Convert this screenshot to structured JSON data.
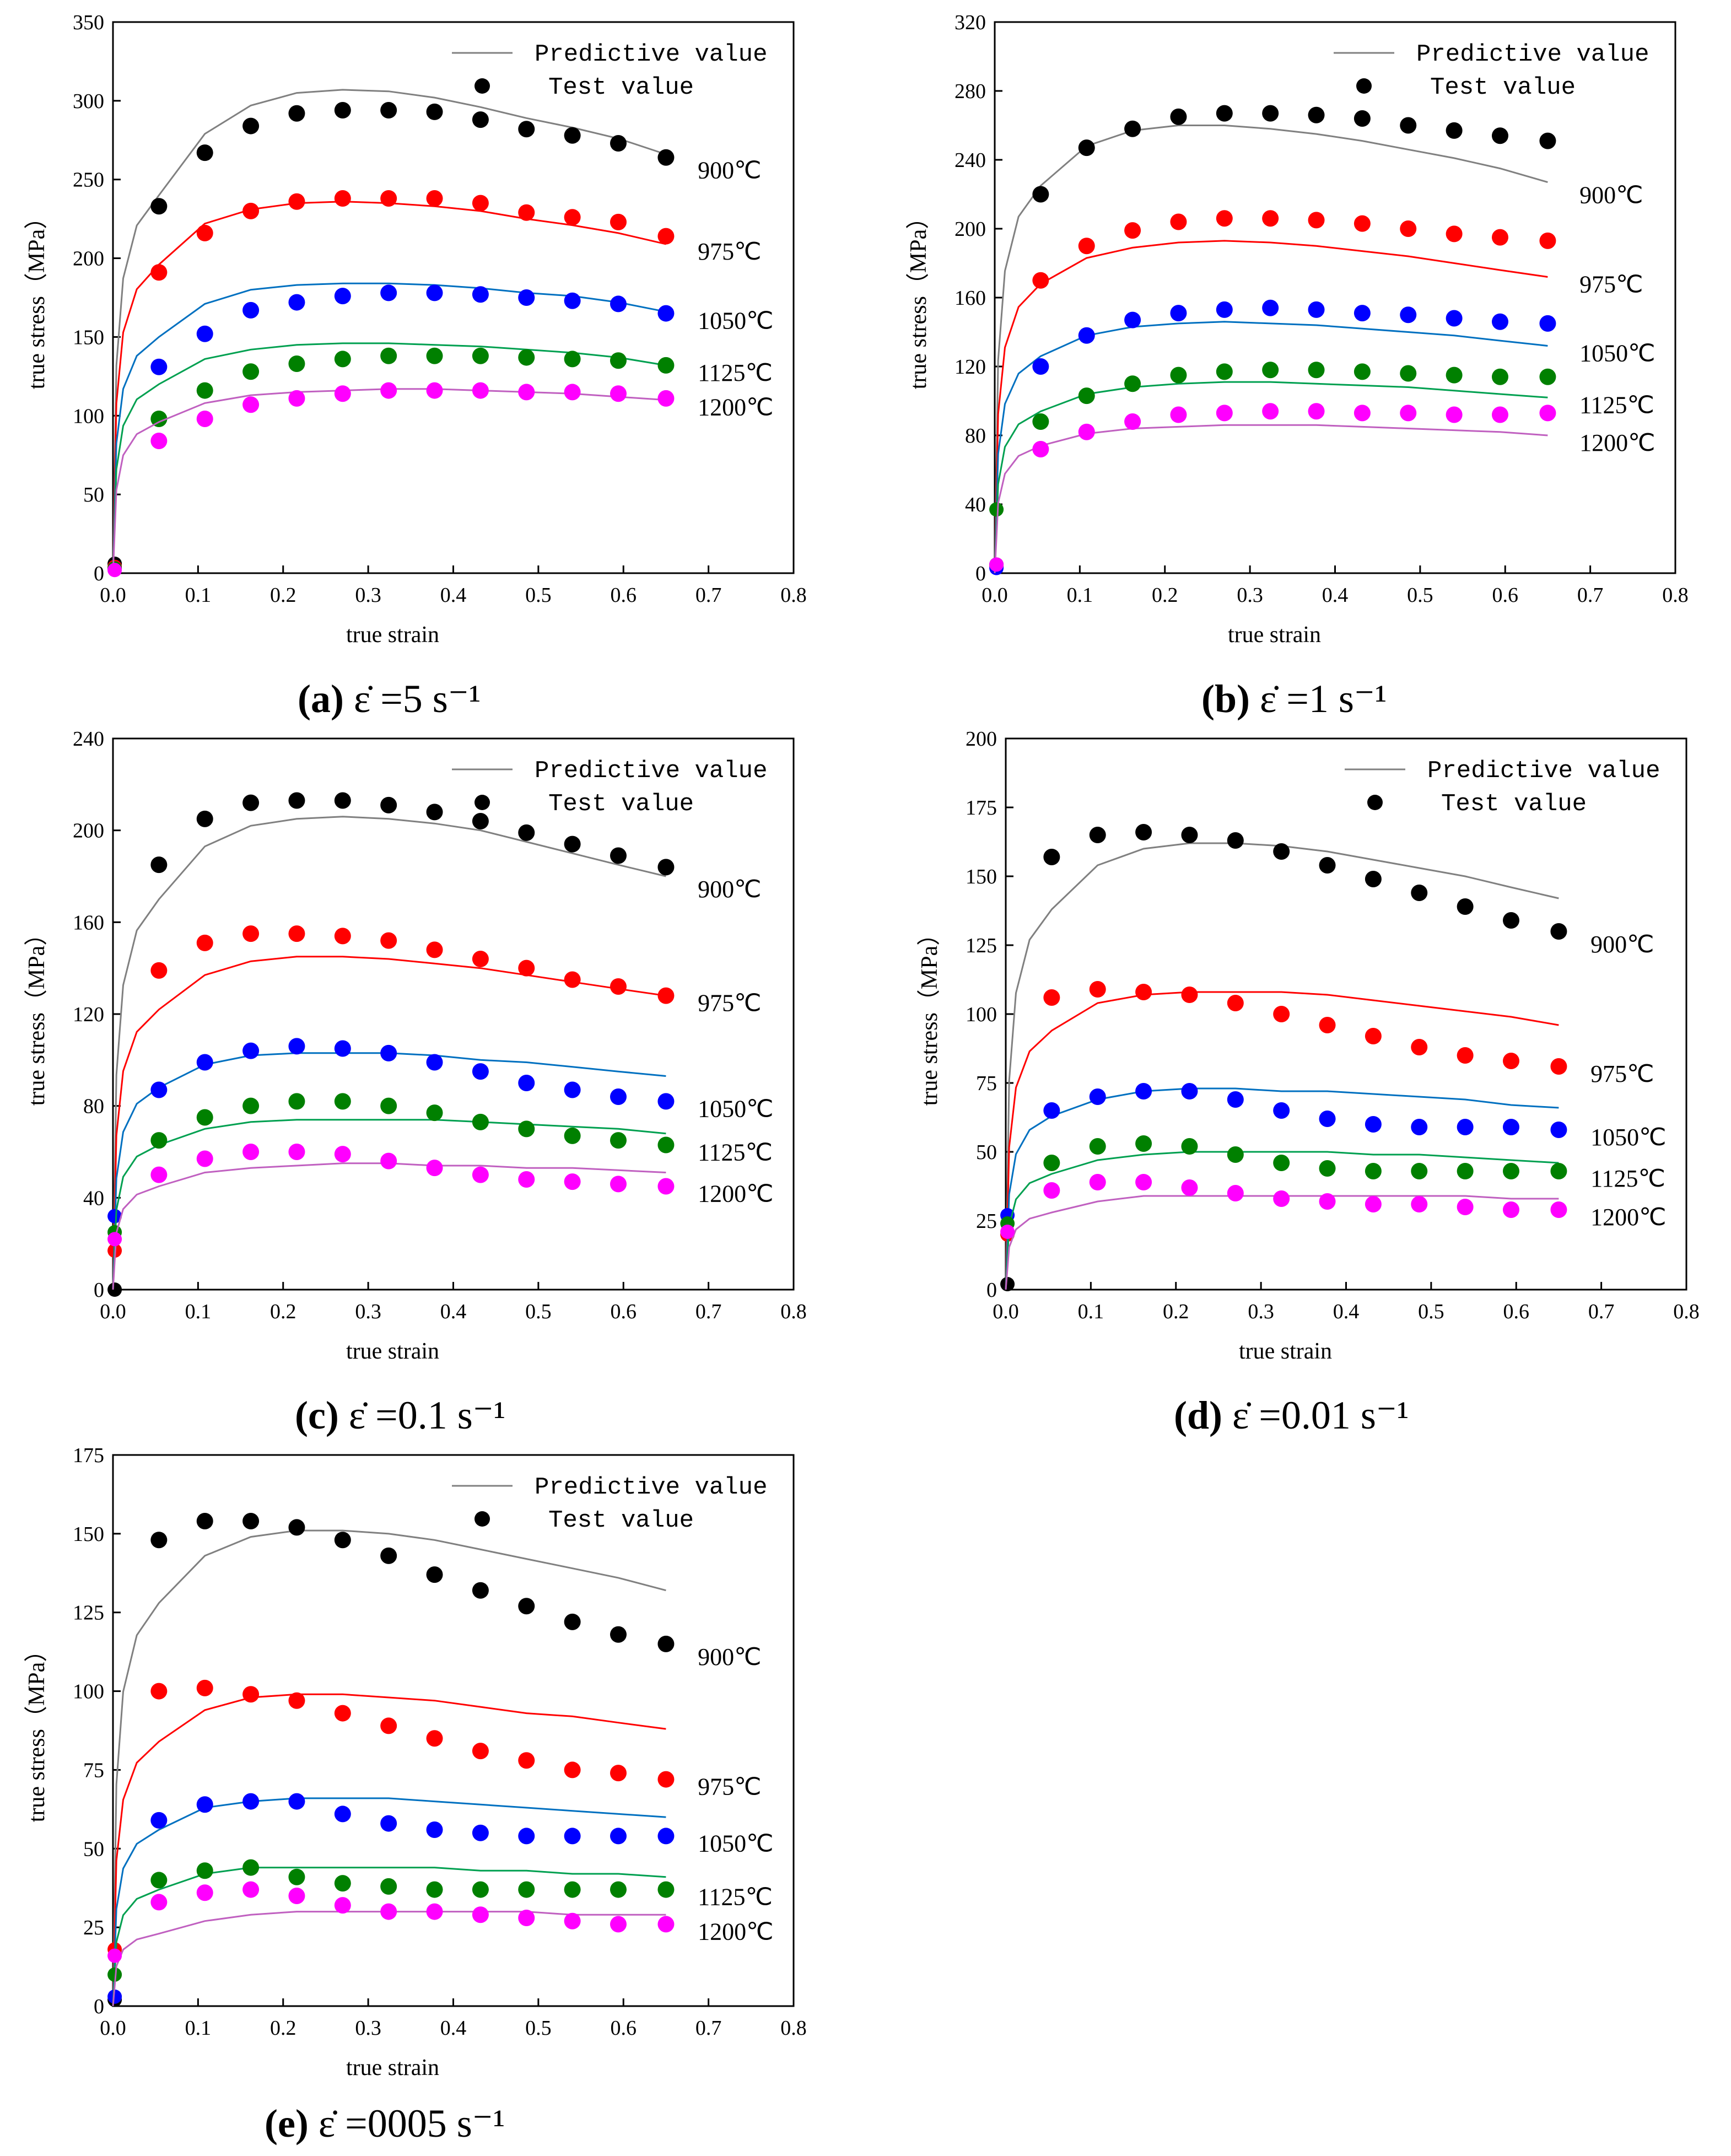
{
  "figure": {
    "panels": [
      {
        "caption_letter": "(a)",
        "caption_text": "ε̇ =5 s⁻¹"
      },
      {
        "caption_letter": "(b)",
        "caption_text": "ε̇ =1 s⁻¹"
      },
      {
        "caption_letter": "(c)",
        "caption_text": "ε̇ =0.1 s⁻¹"
      },
      {
        "caption_letter": "(d)",
        "caption_text": "ε̇ =0.01 s⁻¹"
      },
      {
        "caption_letter": "(e)",
        "caption_text": "ε̇ =0005 s⁻¹"
      }
    ]
  },
  "chart_data": [
    {
      "type": "line",
      "xlabel": "true strain",
      "ylabel": "true stress（MPa）",
      "xlim": [
        0,
        0.8
      ],
      "ylim": [
        0,
        350
      ],
      "xticks": [
        "0.0",
        "0.1",
        "0.2",
        "0.3",
        "0.4",
        "0.5",
        "0.6",
        "0.7",
        "0.8"
      ],
      "yticks": [
        "0",
        "50",
        "100",
        "150",
        "200",
        "250",
        "300",
        "350"
      ],
      "legend": {
        "line": "Predictive value",
        "points": "Test value",
        "position": "top-right"
      },
      "x": [
        0.054,
        0.108,
        0.162,
        0.216,
        0.27,
        0.324,
        0.378,
        0.432,
        0.486,
        0.54,
        0.594,
        0.65
      ],
      "series": [
        {
          "name": "900℃",
          "color": "#000000",
          "pred_color": "#808080",
          "test": [
            233,
            267,
            284,
            292,
            294,
            294,
            293,
            288,
            282,
            278,
            273,
            264
          ],
          "pred": [
            240,
            279,
            297,
            305,
            307,
            306,
            302,
            296,
            289,
            283,
            276,
            266
          ],
          "start": 6
        },
        {
          "name": "975℃",
          "color": "#ff0000",
          "pred_color": "#ff0000",
          "test": [
            191,
            216,
            230,
            236,
            238,
            238,
            238,
            235,
            229,
            226,
            223,
            214
          ],
          "pred": [
            196,
            222,
            231,
            235,
            236,
            235,
            233,
            230,
            225,
            221,
            216,
            209
          ],
          "start": 4
        },
        {
          "name": "1050℃",
          "color": "#0000ff",
          "pred_color": "#0070c0",
          "test": [
            131,
            152,
            167,
            172,
            176,
            178,
            178,
            177,
            175,
            173,
            171,
            165
          ],
          "pred": [
            150,
            171,
            180,
            183,
            184,
            184,
            183,
            181,
            178,
            176,
            172,
            166
          ],
          "start": 3
        },
        {
          "name": "1125℃",
          "color": "#008000",
          "pred_color": "#00a050",
          "test": [
            98,
            116,
            128,
            133,
            136,
            138,
            138,
            138,
            137,
            136,
            135,
            132
          ],
          "pred": [
            120,
            136,
            142,
            145,
            146,
            146,
            145,
            144,
            142,
            140,
            137,
            132
          ],
          "start": 3
        },
        {
          "name": "1200℃",
          "color": "#ff00ff",
          "pred_color": "#c060c0",
          "test": [
            84,
            98,
            107,
            111,
            114,
            116,
            116,
            116,
            115,
            115,
            114,
            111
          ],
          "pred": [
            96,
            108,
            113,
            115,
            116,
            117,
            117,
            116,
            115,
            114,
            112,
            110
          ],
          "start": 2
        }
      ]
    },
    {
      "type": "line",
      "xlabel": "true strain",
      "ylabel": "true stress（MPa）",
      "xlim": [
        0,
        0.8
      ],
      "ylim": [
        0,
        320
      ],
      "xticks": [
        "0.0",
        "0.1",
        "0.2",
        "0.3",
        "0.4",
        "0.5",
        "0.6",
        "0.7",
        "0.8"
      ],
      "yticks": [
        "0",
        "40",
        "80",
        "120",
        "160",
        "200",
        "240",
        "280",
        "320"
      ],
      "legend": {
        "line": "Predictive value",
        "points": "Test value",
        "position": "top-right"
      },
      "x": [
        0.054,
        0.108,
        0.162,
        0.216,
        0.27,
        0.324,
        0.378,
        0.432,
        0.486,
        0.54,
        0.594,
        0.65
      ],
      "series": [
        {
          "name": "900℃",
          "color": "#000000",
          "pred_color": "#808080",
          "test": [
            220,
            247,
            258,
            265,
            267,
            267,
            266,
            264,
            260,
            257,
            254,
            251
          ],
          "pred": [
            225,
            248,
            257,
            260,
            260,
            258,
            255,
            251,
            246,
            241,
            235,
            227
          ],
          "start": 5
        },
        {
          "name": "975℃",
          "color": "#ff0000",
          "pred_color": "#ff0000",
          "test": [
            170,
            190,
            199,
            204,
            206,
            206,
            205,
            203,
            200,
            197,
            195,
            193
          ],
          "pred": [
            168,
            183,
            189,
            192,
            193,
            192,
            190,
            187,
            184,
            180,
            176,
            172
          ],
          "start": 4
        },
        {
          "name": "1050℃",
          "color": "#0000ff",
          "pred_color": "#0070c0",
          "test": [
            120,
            138,
            147,
            151,
            153,
            154,
            153,
            151,
            150,
            148,
            146,
            145
          ],
          "pred": [
            126,
            138,
            143,
            145,
            146,
            145,
            144,
            142,
            140,
            138,
            135,
            132
          ],
          "start": 3
        },
        {
          "name": "1125℃",
          "color": "#008000",
          "pred_color": "#00a050",
          "test": [
            88,
            103,
            110,
            115,
            117,
            118,
            118,
            117,
            116,
            115,
            114,
            114
          ],
          "pred": [
            94,
            104,
            108,
            110,
            111,
            111,
            110,
            109,
            108,
            106,
            104,
            102
          ],
          "start": 37
        },
        {
          "name": "1200℃",
          "color": "#ff00ff",
          "pred_color": "#c060c0",
          "test": [
            72,
            82,
            88,
            92,
            93,
            94,
            94,
            93,
            93,
            92,
            92,
            93
          ],
          "pred": [
            74,
            81,
            84,
            85,
            86,
            86,
            86,
            85,
            84,
            83,
            82,
            80
          ],
          "start": 5
        }
      ]
    },
    {
      "type": "line",
      "xlabel": "true strain",
      "ylabel": "true stress（MPa）",
      "xlim": [
        0,
        0.8
      ],
      "ylim": [
        0,
        240
      ],
      "xticks": [
        "0.0",
        "0.1",
        "0.2",
        "0.3",
        "0.4",
        "0.5",
        "0.6",
        "0.7",
        "0.8"
      ],
      "yticks": [
        "0",
        "40",
        "80",
        "120",
        "160",
        "200",
        "240"
      ],
      "legend": {
        "line": "Predictive value",
        "points": "Test value",
        "position": "top-right"
      },
      "x": [
        0.054,
        0.108,
        0.162,
        0.216,
        0.27,
        0.324,
        0.378,
        0.432,
        0.486,
        0.54,
        0.594,
        0.65
      ],
      "series": [
        {
          "name": "900℃",
          "color": "#000000",
          "pred_color": "#808080",
          "test": [
            185,
            205,
            212,
            213,
            213,
            211,
            208,
            204,
            199,
            194,
            189,
            184
          ],
          "pred": [
            170,
            193,
            202,
            205,
            206,
            205,
            203,
            200,
            195,
            190,
            185,
            180
          ],
          "start": 0
        },
        {
          "name": "975℃",
          "color": "#ff0000",
          "pred_color": "#ff0000",
          "test": [
            139,
            151,
            155,
            155,
            154,
            152,
            148,
            144,
            140,
            135,
            132,
            128
          ],
          "pred": [
            122,
            137,
            143,
            145,
            145,
            144,
            142,
            140,
            137,
            134,
            131,
            128
          ],
          "start": 17
        },
        {
          "name": "1050℃",
          "color": "#0000ff",
          "pred_color": "#0070c0",
          "test": [
            87,
            99,
            104,
            106,
            105,
            103,
            99,
            95,
            90,
            87,
            84,
            82
          ],
          "pred": [
            88,
            98,
            102,
            103,
            103,
            103,
            102,
            100,
            99,
            97,
            95,
            93
          ],
          "start": 32
        },
        {
          "name": "1125℃",
          "color": "#008000",
          "pred_color": "#00a050",
          "test": [
            65,
            75,
            80,
            82,
            82,
            80,
            77,
            73,
            70,
            67,
            65,
            63
          ],
          "pred": [
            63,
            70,
            73,
            74,
            74,
            74,
            74,
            73,
            72,
            71,
            70,
            68
          ],
          "start": 25
        },
        {
          "name": "1200℃",
          "color": "#ff00ff",
          "pred_color": "#c060c0",
          "test": [
            50,
            57,
            60,
            60,
            59,
            56,
            53,
            50,
            48,
            47,
            46,
            45
          ],
          "pred": [
            45,
            51,
            53,
            54,
            55,
            55,
            54,
            54,
            53,
            53,
            52,
            51
          ],
          "start": 22
        }
      ]
    },
    {
      "type": "line",
      "xlabel": "true strain",
      "ylabel": "true stress（MPa）",
      "xlim": [
        0,
        0.8
      ],
      "ylim": [
        0,
        200
      ],
      "xticks": [
        "0.0",
        "0.1",
        "0.2",
        "0.3",
        "0.4",
        "0.5",
        "0.6",
        "0.7",
        "0.8"
      ],
      "yticks": [
        "0",
        "25",
        "50",
        "75",
        "100",
        "125",
        "150",
        "175",
        "200"
      ],
      "legend": {
        "line": "Predictive value",
        "points": "Test value",
        "position": "top-right"
      },
      "x": [
        0.054,
        0.108,
        0.162,
        0.216,
        0.27,
        0.324,
        0.378,
        0.432,
        0.486,
        0.54,
        0.594,
        0.65
      ],
      "series": [
        {
          "name": "900℃",
          "color": "#000000",
          "pred_color": "#808080",
          "test": [
            157,
            165,
            166,
            165,
            163,
            159,
            154,
            149,
            144,
            139,
            134,
            130
          ],
          "pred": [
            138,
            154,
            160,
            162,
            162,
            161,
            159,
            156,
            153,
            150,
            146,
            142
          ],
          "start": 2
        },
        {
          "name": "975℃",
          "color": "#ff0000",
          "pred_color": "#ff0000",
          "test": [
            106,
            109,
            108,
            107,
            104,
            100,
            96,
            92,
            88,
            85,
            83,
            81
          ],
          "pred": [
            94,
            104,
            107,
            108,
            108,
            108,
            107,
            105,
            103,
            101,
            99,
            96
          ],
          "start": 20
        },
        {
          "name": "1050℃",
          "color": "#0000ff",
          "pred_color": "#0070c0",
          "test": [
            65,
            70,
            72,
            72,
            69,
            65,
            62,
            60,
            59,
            59,
            59,
            58
          ],
          "pred": [
            63,
            69,
            72,
            73,
            73,
            72,
            72,
            71,
            70,
            69,
            67,
            66
          ],
          "start": 27
        },
        {
          "name": "1125℃",
          "color": "#008000",
          "pred_color": "#00a050",
          "test": [
            46,
            52,
            53,
            52,
            49,
            46,
            44,
            43,
            43,
            43,
            43,
            43
          ],
          "pred": [
            42,
            47,
            49,
            50,
            50,
            50,
            50,
            49,
            49,
            48,
            47,
            46
          ],
          "start": 24
        },
        {
          "name": "1200℃",
          "color": "#ff00ff",
          "pred_color": "#c060c0",
          "test": [
            36,
            39,
            39,
            37,
            35,
            33,
            32,
            31,
            31,
            30,
            29,
            29
          ],
          "pred": [
            28,
            32,
            34,
            34,
            34,
            34,
            34,
            34,
            34,
            34,
            33,
            33
          ],
          "start": 21
        }
      ]
    },
    {
      "type": "line",
      "xlabel": "true strain",
      "ylabel": "true stress（MPa）",
      "xlim": [
        0,
        0.8
      ],
      "ylim": [
        0,
        175
      ],
      "xticks": [
        "0.0",
        "0.1",
        "0.2",
        "0.3",
        "0.4",
        "0.5",
        "0.6",
        "0.7",
        "0.8"
      ],
      "yticks": [
        "0",
        "25",
        "50",
        "75",
        "100",
        "125",
        "150",
        "175"
      ],
      "legend": {
        "line": "Predictive value",
        "points": "Test value",
        "position": "top-right"
      },
      "x": [
        0.054,
        0.108,
        0.162,
        0.216,
        0.27,
        0.324,
        0.378,
        0.432,
        0.486,
        0.54,
        0.594,
        0.65
      ],
      "series": [
        {
          "name": "900℃",
          "color": "#000000",
          "pred_color": "#808080",
          "test": [
            148,
            154,
            154,
            152,
            148,
            143,
            137,
            132,
            127,
            122,
            118,
            115
          ],
          "pred": [
            128,
            143,
            149,
            151,
            151,
            150,
            148,
            145,
            142,
            139,
            136,
            132
          ],
          "start": 2
        },
        {
          "name": "975℃",
          "color": "#ff0000",
          "pred_color": "#ff0000",
          "test": [
            100,
            101,
            99,
            97,
            93,
            89,
            85,
            81,
            78,
            75,
            74,
            72
          ],
          "pred": [
            84,
            94,
            98,
            99,
            99,
            98,
            97,
            95,
            93,
            92,
            90,
            88
          ],
          "start": 18
        },
        {
          "name": "1050℃",
          "color": "#0000ff",
          "pred_color": "#0070c0",
          "test": [
            59,
            64,
            65,
            65,
            61,
            58,
            56,
            55,
            54,
            54,
            54,
            54
          ],
          "pred": [
            56,
            63,
            65,
            66,
            66,
            66,
            65,
            64,
            63,
            62,
            61,
            60
          ],
          "start": 3
        },
        {
          "name": "1125℃",
          "color": "#008000",
          "pred_color": "#00a050",
          "test": [
            40,
            43,
            44,
            41,
            39,
            38,
            37,
            37,
            37,
            37,
            37,
            37
          ],
          "pred": [
            37,
            42,
            44,
            44,
            44,
            44,
            44,
            43,
            43,
            42,
            42,
            41
          ],
          "start": 10
        },
        {
          "name": "1200℃",
          "color": "#ff00ff",
          "pred_color": "#c060c0",
          "test": [
            33,
            36,
            37,
            35,
            32,
            30,
            30,
            29,
            28,
            27,
            26,
            26
          ],
          "pred": [
            23,
            27,
            29,
            30,
            30,
            30,
            30,
            30,
            30,
            29,
            29,
            29
          ],
          "start": 16
        }
      ]
    }
  ]
}
